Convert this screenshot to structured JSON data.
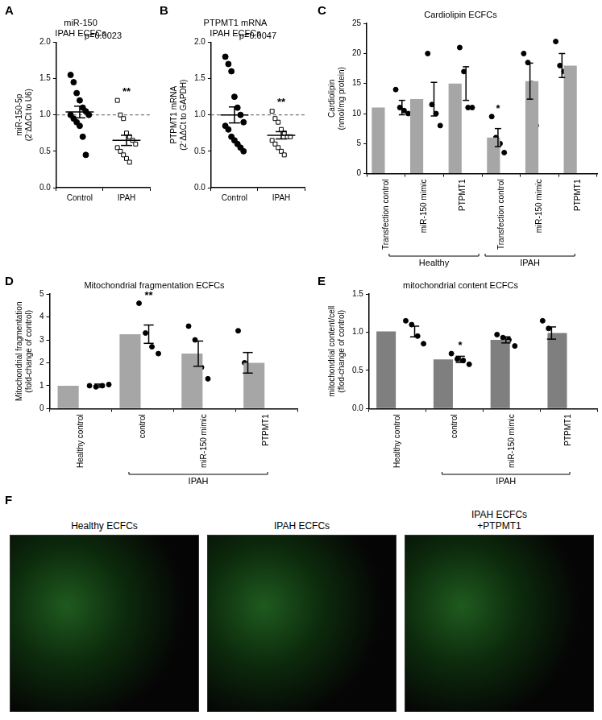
{
  "chart_data": [
    {
      "panel": "A",
      "type": "dot",
      "title": [
        "miR-150",
        "IPAH ECFCs"
      ],
      "y_label": [
        "miR-150-5p",
        "(2⁻ΔΔCt to U6)"
      ],
      "ylim": [
        0,
        2
      ],
      "yticks": [
        {
          "value": 0,
          "label": "0.0"
        },
        {
          "value": 0.5,
          "label": "0.5"
        },
        {
          "value": 1,
          "label": "1.0"
        },
        {
          "value": 1.5,
          "label": "1.5"
        },
        {
          "value": 2,
          "label": "2.0"
        }
      ],
      "grid": false,
      "reference": 1,
      "line_style": "dashed",
      "annotation": "p=0.0023",
      "series": [
        {
          "name": "Control",
          "marker": "circle",
          "color": "#000000",
          "values": [
            1.55,
            1.45,
            1.3,
            1.2,
            1.1,
            1.05,
            1.0,
            1.0,
            0.95,
            0.9,
            0.85,
            0.7,
            0.45
          ],
          "mean": 1.04,
          "sem": 0.08
        },
        {
          "name": "IPAH",
          "marker": "square_open",
          "color": "#000000",
          "values": [
            1.2,
            1.0,
            0.95,
            0.75,
            0.7,
            0.65,
            0.6,
            0.55,
            0.5,
            0.45,
            0.4,
            0.35
          ],
          "mean": 0.65,
          "sem": 0.07,
          "significance": "**"
        }
      ]
    },
    {
      "panel": "B",
      "type": "dot",
      "title": [
        "PTPMT1 mRNA",
        "IPAH ECFCs"
      ],
      "y_label": [
        "PTPMT1 mRNA",
        "(2⁻ΔΔCt to GAPDH)"
      ],
      "ylim": [
        0,
        2
      ],
      "yticks": [
        {
          "value": 0,
          "label": "0.0"
        },
        {
          "value": 0.5,
          "label": "0.5"
        },
        {
          "value": 1,
          "label": "1.0"
        },
        {
          "value": 1.5,
          "label": "1.5"
        },
        {
          "value": 2,
          "label": "2.0"
        }
      ],
      "grid": false,
      "reference": 1,
      "line_style": "dashed",
      "annotation": "p=0.0047",
      "series": [
        {
          "name": "Control",
          "marker": "circle",
          "color": "#000000",
          "values": [
            1.8,
            1.7,
            1.6,
            1.25,
            1.1,
            1.0,
            0.9,
            0.85,
            0.8,
            0.7,
            0.65,
            0.6,
            0.55,
            0.5
          ],
          "mean": 1.0,
          "sem": 0.11
        },
        {
          "name": "IPAH",
          "marker": "square_open",
          "color": "#000000",
          "values": [
            1.05,
            0.95,
            0.9,
            0.8,
            0.75,
            0.7,
            0.7,
            0.65,
            0.6,
            0.55,
            0.5,
            0.45
          ],
          "mean": 0.72,
          "sem": 0.05,
          "significance": "**"
        }
      ]
    },
    {
      "panel": "C",
      "type": "bar",
      "title": "Cardiolipin ECFCs",
      "y_label": [
        "Cardiolipin",
        "(nmol/mg protein)"
      ],
      "ylim": [
        0,
        25
      ],
      "yticks": [
        0,
        5,
        10,
        15,
        20,
        25
      ],
      "grid": false,
      "color": "#a6a6a6",
      "categories": [
        "Transfection control",
        "miR-150 mimic",
        "PTPMT1",
        "Transfection control",
        "miR-150 mimic",
        "PTPMT1"
      ],
      "values": [
        11,
        12.4,
        15,
        6,
        15.4,
        18
      ],
      "errors": [
        1.2,
        2.8,
        2.8,
        1.5,
        3,
        2
      ],
      "points": [
        [
          14,
          11,
          10.5,
          10
        ],
        [
          20,
          11.5,
          10,
          8
        ],
        [
          21,
          17,
          11,
          11
        ],
        [
          9.5,
          6,
          5,
          3.5
        ],
        [
          20,
          18.5,
          15,
          8
        ],
        [
          22,
          18,
          17,
          15
        ]
      ],
      "significance": [
        null,
        null,
        null,
        "*",
        null,
        null
      ],
      "groups": [
        "Healthy",
        "Healthy",
        "Healthy",
        "IPAH",
        "IPAH",
        "IPAH"
      ]
    },
    {
      "panel": "D",
      "type": "bar",
      "title": "Mitochondrial fragmentation ECFCs",
      "y_label": [
        "Mitochondrial fragmentation",
        "(fold-change of control)"
      ],
      "ylim": [
        0,
        5
      ],
      "yticks": [
        0,
        1,
        2,
        3,
        4,
        5
      ],
      "grid": false,
      "color": "#a6a6a6",
      "categories": [
        "Healthy control",
        "control",
        "miR-150 mimic",
        "PTPMT1"
      ],
      "values": [
        1.0,
        3.25,
        2.4,
        2.0
      ],
      "errors": [
        0.07,
        0.4,
        0.55,
        0.45
      ],
      "points": [
        [
          1.0,
          0.95,
          1.0,
          1.05
        ],
        [
          4.6,
          3.3,
          2.7,
          2.4
        ],
        [
          3.6,
          3.0,
          1.8,
          1.3
        ],
        [
          3.4,
          2.0,
          1.6,
          1.0
        ]
      ],
      "significance": [
        null,
        "**",
        null,
        null
      ],
      "groups": [
        null,
        "IPAH",
        "IPAH",
        "IPAH"
      ]
    },
    {
      "panel": "E",
      "type": "bar",
      "title": "mitochondrial content ECFCs",
      "y_label": [
        "mitochondrial content/cell",
        "(flod-change of control)"
      ],
      "ylim": [
        0,
        1.5
      ],
      "yticks": [
        {
          "value": 0,
          "label": "0.0"
        },
        {
          "value": 0.5,
          "label": "0.5"
        },
        {
          "value": 1,
          "label": "1.0"
        },
        {
          "value": 1.5,
          "label": "1.5"
        }
      ],
      "grid": false,
      "color": "#7f7f7f",
      "categories": [
        "Healthy control",
        "control",
        "miR-150 mimic",
        "PTPMT1"
      ],
      "values": [
        1.01,
        0.645,
        0.9,
        0.99
      ],
      "errors": [
        0.07,
        0.04,
        0.04,
        0.08
      ],
      "points": [
        [
          1.15,
          1.1,
          0.95,
          0.85
        ],
        [
          0.72,
          0.65,
          0.63,
          0.58
        ],
        [
          0.97,
          0.93,
          0.9,
          0.82
        ],
        [
          1.15,
          1.05,
          0.9,
          0.85
        ]
      ],
      "significance": [
        null,
        "*",
        null,
        null
      ],
      "groups": [
        null,
        "IPAH",
        "IPAH",
        "IPAH"
      ]
    }
  ],
  "image_panel": {
    "panel": "F",
    "labels": [
      [
        "Healthy ECFCs"
      ],
      [
        "IPAH ECFCs"
      ],
      [
        "IPAH ECFCs",
        "+PTPMT1"
      ]
    ]
  }
}
